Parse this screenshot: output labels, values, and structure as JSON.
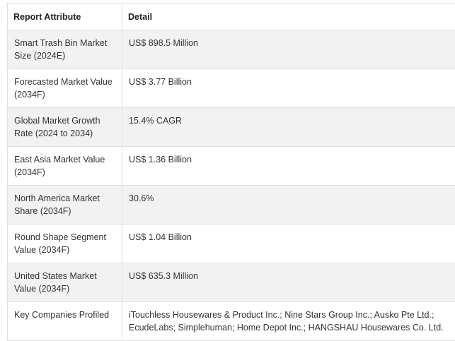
{
  "table": {
    "headers": [
      "Report Attribute",
      "Detail"
    ],
    "rows": [
      {
        "attribute": "Smart Trash Bin Market Size (2024E)",
        "detail": "US$ 898.5 Million"
      },
      {
        "attribute": "Forecasted Market Value (2034F)",
        "detail": "US$ 3.77 Billion"
      },
      {
        "attribute": "Global Market Growth Rate (2024 to 2034)",
        "detail": "15.4% CAGR"
      },
      {
        "attribute": "East Asia Market Value (2034F)",
        "detail": "US$ 1.36 Billion"
      },
      {
        "attribute": "North America Market Share (2034F)",
        "detail": "30.6%"
      },
      {
        "attribute": "Round Shape Segment Value (2034F)",
        "detail": "US$ 1.04 Billion"
      },
      {
        "attribute": "United States Market Value (2034F)",
        "detail": "US$ 635.3 Million"
      },
      {
        "attribute": "Key Companies Profiled",
        "detail": "iTouchless Housewares & Product Inc.; Nine Stars Group Inc.; Ausko Pte Ltd.; EcudeLabs; Simplehuman; Home Depot Inc.; HANGSHAU Housewares Co. Ltd."
      }
    ]
  }
}
